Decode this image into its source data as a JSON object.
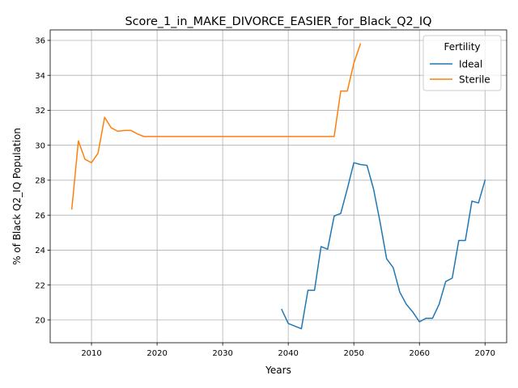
{
  "chart_data": {
    "type": "line",
    "title": "Score_1_in_MAKE_DIVORCE_EASIER_for_Black_Q2_IQ",
    "xlabel": "Years",
    "ylabel": "% of Black Q2_IQ Population",
    "xlim": [
      2003.7,
      2073.3
    ],
    "ylim": [
      18.7,
      36.6
    ],
    "xticks": [
      2010,
      2020,
      2030,
      2040,
      2050,
      2060,
      2070
    ],
    "yticks": [
      20,
      22,
      24,
      26,
      28,
      30,
      32,
      34,
      36
    ],
    "grid": true,
    "legend": {
      "title": "Fertility",
      "placement": "top-right"
    },
    "series": [
      {
        "name": "Ideal",
        "color": "#1f77b4",
        "x": [
          2039,
          2040,
          2041,
          2042,
          2043,
          2044,
          2045,
          2046,
          2047,
          2048,
          2049,
          2050,
          2051,
          2052,
          2053,
          2054,
          2055,
          2056,
          2057,
          2058,
          2059,
          2060,
          2061,
          2062,
          2063,
          2064,
          2065,
          2066,
          2067,
          2068,
          2069,
          2070
        ],
        "y": [
          20.6,
          19.8,
          19.65,
          19.5,
          21.7,
          21.7,
          24.2,
          24.05,
          25.95,
          26.1,
          27.5,
          29.0,
          28.9,
          28.85,
          27.5,
          25.6,
          23.5,
          23.0,
          21.6,
          20.9,
          20.45,
          19.9,
          20.1,
          20.1,
          20.9,
          22.2,
          22.4,
          24.55,
          24.55,
          26.8,
          26.7,
          28.0
        ]
      },
      {
        "name": "Sterile",
        "color": "#ff7f0e",
        "x": [
          2007,
          2008,
          2009,
          2010,
          2011,
          2012,
          2013,
          2014,
          2015,
          2016,
          2017,
          2018,
          2019,
          2020,
          2025,
          2030,
          2035,
          2040,
          2045,
          2046,
          2047,
          2048,
          2049,
          2050,
          2051
        ],
        "y": [
          26.35,
          30.25,
          29.2,
          29.0,
          29.55,
          31.6,
          31.0,
          30.8,
          30.85,
          30.85,
          30.65,
          30.5,
          30.5,
          30.5,
          30.5,
          30.5,
          30.5,
          30.5,
          30.5,
          30.5,
          30.5,
          33.1,
          33.1,
          34.7,
          35.8
        ]
      }
    ]
  }
}
